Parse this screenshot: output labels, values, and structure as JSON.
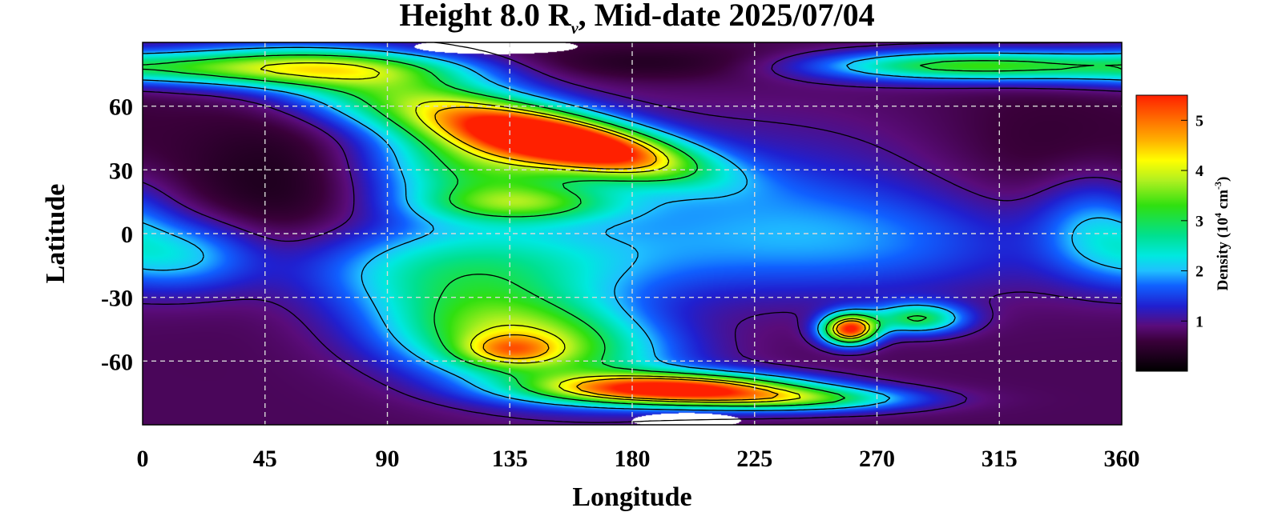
{
  "chart_data": {
    "type": "heatmap",
    "title_prefix": "Height 8.0 R",
    "title_sub": "v",
    "title_suffix": ", Mid-date 2025/07/04",
    "xlabel": "Longitude",
    "ylabel": "Latitude",
    "xlim": [
      0,
      360
    ],
    "ylim": [
      -90,
      90
    ],
    "xticks": [
      0,
      45,
      90,
      135,
      180,
      225,
      270,
      315,
      360
    ],
    "yticks": [
      60,
      30,
      0,
      -30,
      -60
    ],
    "grid": true,
    "colorbar": {
      "label_prefix": "Density (10",
      "label_exp1": "4",
      "label_mid": " cm",
      "label_exp2": "-3",
      "label_suffix": ")",
      "range": [
        0,
        5.5
      ],
      "ticks": [
        1,
        2,
        3,
        4,
        5
      ],
      "placement": "right"
    },
    "colorscale": [
      {
        "v": 0.0,
        "color": "#000000"
      },
      {
        "v": 0.6,
        "color": "#3a003a"
      },
      {
        "v": 0.9,
        "color": "#5a0c7a"
      },
      {
        "v": 1.3,
        "color": "#2020d0"
      },
      {
        "v": 1.7,
        "color": "#1060ff"
      },
      {
        "v": 2.0,
        "color": "#20c0ff"
      },
      {
        "v": 2.3,
        "color": "#00e8e0"
      },
      {
        "v": 2.7,
        "color": "#00e090"
      },
      {
        "v": 3.3,
        "color": "#30e010"
      },
      {
        "v": 3.8,
        "color": "#b0f020"
      },
      {
        "v": 4.2,
        "color": "#ffff00"
      },
      {
        "v": 4.6,
        "color": "#ffb000"
      },
      {
        "v": 5.0,
        "color": "#ff7000"
      },
      {
        "v": 5.5,
        "color": "#ff2000"
      }
    ],
    "background_level": 0.75,
    "features": [
      {
        "lon": 160,
        "lat": 42,
        "amp": 4.8,
        "slon": 30,
        "slat": 8,
        "rot": -14
      },
      {
        "lon": 125,
        "lat": 32,
        "amp": 2.1,
        "slon": 28,
        "slat": 16,
        "rot": 0
      },
      {
        "lon": 100,
        "lat": 62,
        "amp": 2.4,
        "slon": 40,
        "slat": 12,
        "rot": -15
      },
      {
        "lon": 50,
        "lat": 78,
        "amp": 2.5,
        "slon": 50,
        "slat": 6,
        "rot": 0
      },
      {
        "lon": 300,
        "lat": 79,
        "amp": 2.4,
        "slon": 40,
        "slat": 5,
        "rot": 0
      },
      {
        "lon": 140,
        "lat": 14,
        "amp": 1.5,
        "slon": 25,
        "slat": 6,
        "rot": 0
      },
      {
        "lon": 140,
        "lat": -50,
        "amp": 3.2,
        "slon": 35,
        "slat": 16,
        "rot": -10
      },
      {
        "lon": 135,
        "lat": -55,
        "amp": 1.4,
        "slon": 12,
        "slat": 5,
        "rot": 0
      },
      {
        "lon": 195,
        "lat": -73,
        "amp": 4.5,
        "slon": 32,
        "slat": 5,
        "rot": 0
      },
      {
        "lon": 240,
        "lat": -78,
        "amp": 2.2,
        "slon": 30,
        "slat": 4,
        "rot": 0
      },
      {
        "lon": 120,
        "lat": -15,
        "amp": 1.6,
        "slon": 45,
        "slat": 14,
        "rot": 0
      },
      {
        "lon": 15,
        "lat": -10,
        "amp": 1.2,
        "slon": 20,
        "slat": 12,
        "rot": 0
      },
      {
        "lon": 260,
        "lat": -45,
        "amp": 4.6,
        "slon": 7,
        "slat": 5,
        "rot": 0
      },
      {
        "lon": 285,
        "lat": -40,
        "amp": 2.2,
        "slon": 12,
        "slat": 5,
        "rot": 0
      },
      {
        "lon": 260,
        "lat": -5,
        "amp": 0.9,
        "slon": 60,
        "slat": 18,
        "rot": 0
      },
      {
        "lon": 350,
        "lat": 5,
        "amp": 1.0,
        "slon": 15,
        "slat": 16,
        "rot": 0
      },
      {
        "lon": 210,
        "lat": 20,
        "amp": 0.6,
        "slon": 60,
        "slat": 25,
        "rot": 0
      },
      {
        "lon": 50,
        "lat": 20,
        "amp": -0.5,
        "slon": 25,
        "slat": 30,
        "rot": 0
      },
      {
        "lon": 330,
        "lat": 30,
        "amp": -0.3,
        "slon": 30,
        "slat": 30,
        "rot": 0
      },
      {
        "lon": 180,
        "lat": 80,
        "amp": -0.5,
        "slon": 60,
        "slat": 6,
        "rot": 0
      }
    ],
    "contour_levels": [
      1,
      2,
      3,
      4,
      4.5
    ],
    "missing_regions": [
      {
        "lon": 130,
        "lat": 88,
        "slon": 30,
        "slat": 3.5
      },
      {
        "lon": 200,
        "lat": -88,
        "slon": 20,
        "slat": 3.5
      }
    ]
  }
}
